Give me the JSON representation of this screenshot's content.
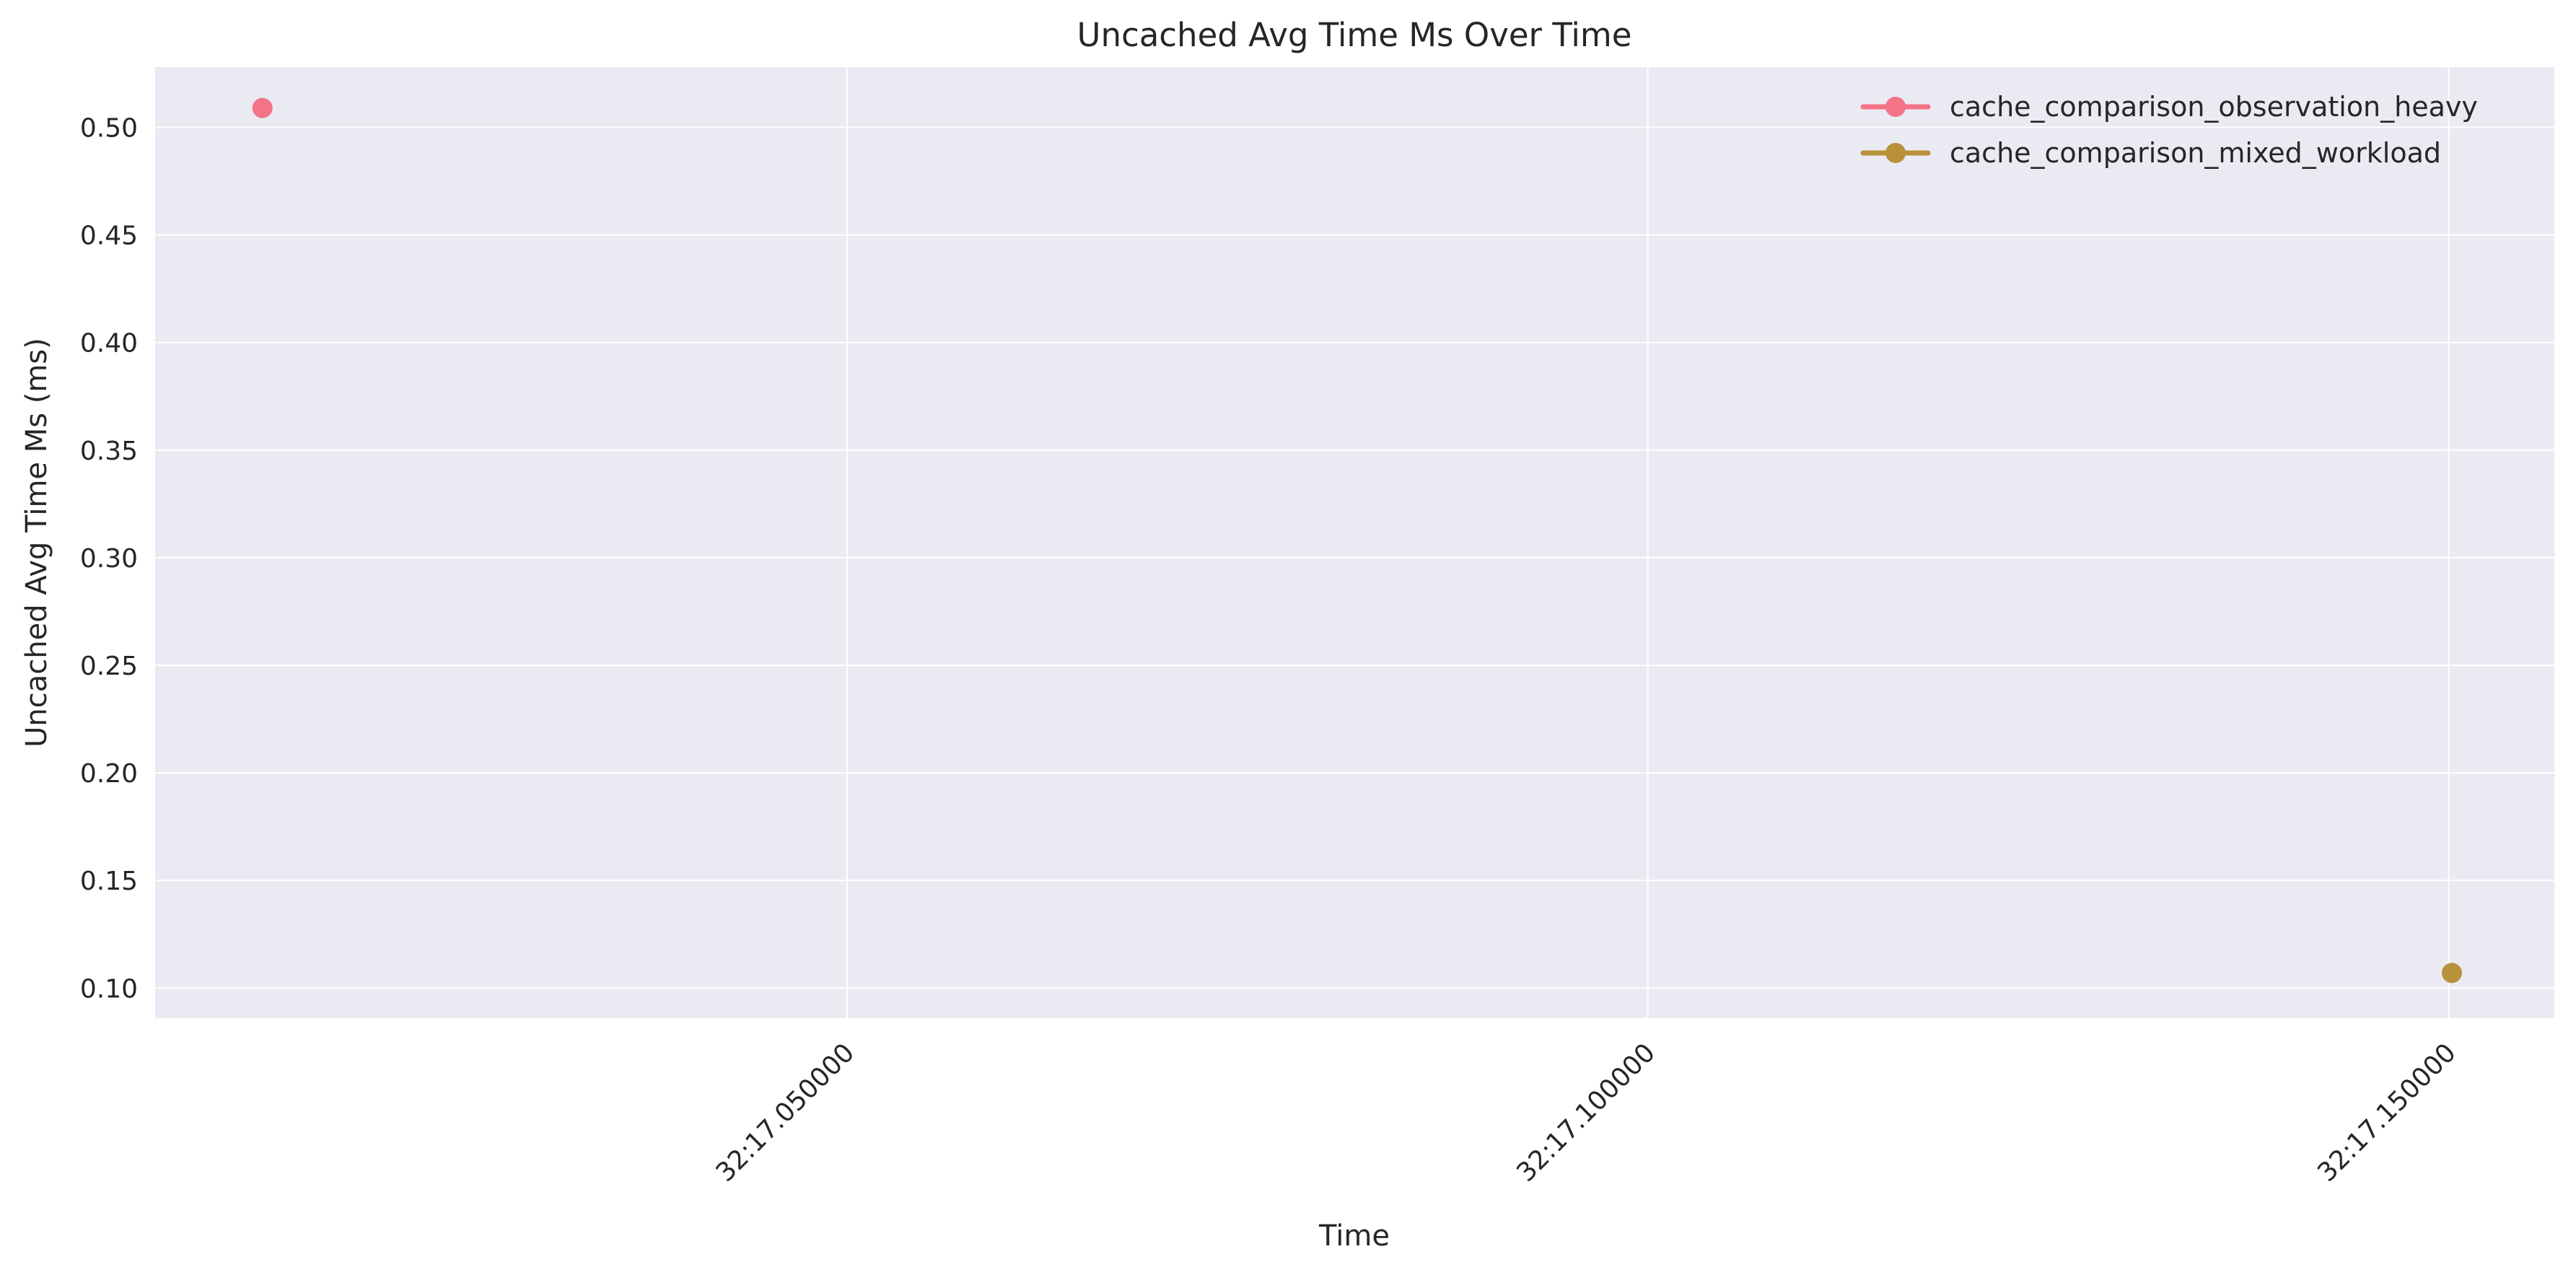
{
  "chart_data": {
    "type": "line",
    "title": "Uncached Avg Time Ms Over Time",
    "xlabel": "Time",
    "ylabel": "Uncached Avg Time Ms (ms)",
    "x_ticks": [
      "32:17.050000",
      "32:17.100000",
      "32:17.150000"
    ],
    "x_tick_values": [
      0.05,
      0.1,
      0.15
    ],
    "xlim": [
      0.0068,
      0.1566
    ],
    "ylim": [
      0.086,
      0.528
    ],
    "y_ticks": [
      0.1,
      0.15,
      0.2,
      0.25,
      0.3,
      0.35,
      0.4,
      0.45,
      0.5
    ],
    "grid": true,
    "legend_position": "top-right",
    "series": [
      {
        "name": "cache_comparison_observation_heavy",
        "color": "#f37387",
        "points": [
          {
            "x": 0.0135,
            "y": 0.509
          }
        ]
      },
      {
        "name": "cache_comparison_mixed_workload",
        "color": "#b8913a",
        "points": [
          {
            "x": 0.1502,
            "y": 0.107
          }
        ]
      }
    ]
  },
  "colors": {
    "plot_background": "#eaeaf2",
    "grid": "#ffffff",
    "text": "#262626"
  }
}
